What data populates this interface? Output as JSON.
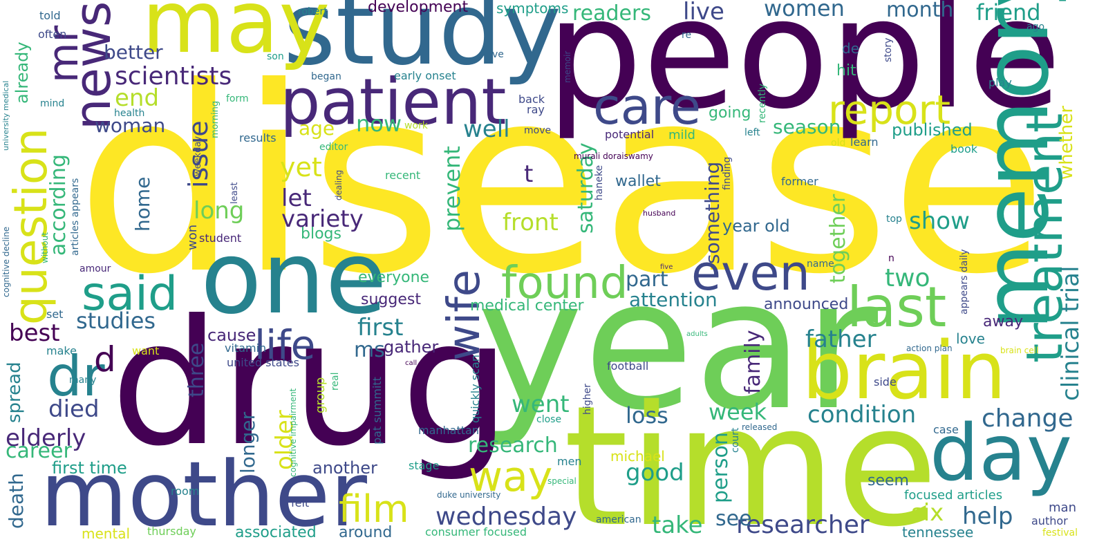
{
  "palette": {
    "dark_purple": "#440154",
    "purple": "#482878",
    "indigo": "#3e4989",
    "blue": "#31688e",
    "teal": "#26828e",
    "teal_green": "#1f9e89",
    "green": "#35b779",
    "light_green": "#6ece58",
    "lime": "#b5de2b",
    "yellow": "#fde725",
    "background": "#ffffff"
  },
  "words": [
    {
      "text": "disease",
      "color": "#fde725"
    },
    {
      "text": "people",
      "color": "#440154"
    },
    {
      "text": "year",
      "color": "#6ece58"
    },
    {
      "text": "drug",
      "color": "#440154"
    },
    {
      "text": "time",
      "color": "#b5de2b"
    },
    {
      "text": "study",
      "color": "#31688e"
    },
    {
      "text": "one",
      "color": "#26828e"
    },
    {
      "text": "mother",
      "color": "#3e4989"
    },
    {
      "text": "may",
      "color": "#d8e219"
    },
    {
      "text": "memory",
      "color": "#1f9e89"
    },
    {
      "text": "brain",
      "color": "#d8e219"
    },
    {
      "text": "patient",
      "color": "#482878"
    },
    {
      "text": "day",
      "color": "#26828e"
    },
    {
      "text": "treatment",
      "color": "#1f9e89"
    },
    {
      "text": "care",
      "color": "#3e4989"
    },
    {
      "text": "news",
      "color": "#482878"
    },
    {
      "text": "last",
      "color": "#6ece58"
    },
    {
      "text": "question",
      "color": "#d8e219"
    },
    {
      "text": "said",
      "color": "#1f9e89"
    },
    {
      "text": "even",
      "color": "#3e4989"
    },
    {
      "text": "found",
      "color": "#6ece58"
    },
    {
      "text": "wife",
      "color": "#3e4989"
    },
    {
      "text": "report",
      "color": "#d8e219"
    },
    {
      "text": "way",
      "color": "#d8e219"
    },
    {
      "text": "life",
      "color": "#3e4989"
    },
    {
      "text": "dr",
      "color": "#26828e"
    },
    {
      "text": "film",
      "color": "#d8e219"
    },
    {
      "text": "mr",
      "color": "#482878"
    },
    {
      "text": "wednesday",
      "color": "#3e4989"
    },
    {
      "text": "researcher",
      "color": "#3e4989"
    },
    {
      "text": "d",
      "color": "#440154"
    },
    {
      "text": "clinical trial",
      "color": "#26828e"
    },
    {
      "text": "whether",
      "color": "#d8e219"
    },
    {
      "text": "change",
      "color": "#31688e"
    },
    {
      "text": "condition",
      "color": "#26828e"
    },
    {
      "text": "scientists",
      "color": "#482878"
    },
    {
      "text": "friend",
      "color": "#1f9e89"
    },
    {
      "text": "women",
      "color": "#31688e"
    },
    {
      "text": "month",
      "color": "#31688e"
    },
    {
      "text": "live",
      "color": "#3e4989"
    },
    {
      "text": "readers",
      "color": "#35b779"
    },
    {
      "text": "first",
      "color": "#26828e"
    },
    {
      "text": "studies",
      "color": "#31688e"
    },
    {
      "text": "variety",
      "color": "#482878"
    },
    {
      "text": "prevent",
      "color": "#35b779"
    },
    {
      "text": "two",
      "color": "#35b779"
    },
    {
      "text": "father",
      "color": "#26828e"
    },
    {
      "text": "help",
      "color": "#31688e"
    },
    {
      "text": "six",
      "color": "#b5de2b"
    },
    {
      "text": "take",
      "color": "#35b779"
    },
    {
      "text": "see",
      "color": "#31688e"
    },
    {
      "text": "good",
      "color": "#1f9e89"
    },
    {
      "text": "loss",
      "color": "#31688e"
    },
    {
      "text": "week",
      "color": "#35b779"
    },
    {
      "text": "went",
      "color": "#35b779"
    },
    {
      "text": "research",
      "color": "#35b779"
    },
    {
      "text": "elderly",
      "color": "#482878"
    },
    {
      "text": "died",
      "color": "#3e4989"
    },
    {
      "text": "best",
      "color": "#440154"
    },
    {
      "text": "career",
      "color": "#35b779"
    },
    {
      "text": "according",
      "color": "#35b779"
    },
    {
      "text": "issue",
      "color": "#3e4989"
    },
    {
      "text": "long",
      "color": "#6ece58"
    },
    {
      "text": "front",
      "color": "#b5de2b"
    },
    {
      "text": "attention",
      "color": "#26828e"
    },
    {
      "text": "part",
      "color": "#31688e"
    },
    {
      "text": "show",
      "color": "#1f9e89"
    },
    {
      "text": "saturday",
      "color": "#35b779"
    },
    {
      "text": "something",
      "color": "#3e4989"
    },
    {
      "text": "together",
      "color": "#6ece58"
    },
    {
      "text": "season",
      "color": "#35b779"
    },
    {
      "text": "published",
      "color": "#1f9e89"
    },
    {
      "text": "better",
      "color": "#3e4989"
    },
    {
      "text": "end",
      "color": "#b5de2b"
    },
    {
      "text": "woman",
      "color": "#3e4989"
    },
    {
      "text": "age",
      "color": "#d8e219"
    },
    {
      "text": "now",
      "color": "#35b779"
    },
    {
      "text": "well",
      "color": "#26828e"
    },
    {
      "text": "yet",
      "color": "#d8e219"
    },
    {
      "text": "let",
      "color": "#482878"
    },
    {
      "text": "home",
      "color": "#31688e"
    },
    {
      "text": "wallet",
      "color": "#31688e"
    },
    {
      "text": "year old",
      "color": "#31688e"
    },
    {
      "text": "t",
      "color": "#482878"
    },
    {
      "text": "family",
      "color": "#482878"
    },
    {
      "text": "person",
      "color": "#1f9e89"
    },
    {
      "text": "older",
      "color": "#d8e219"
    },
    {
      "text": "longer",
      "color": "#31688e"
    },
    {
      "text": "three",
      "color": "#3e4989"
    },
    {
      "text": "cause",
      "color": "#482878"
    },
    {
      "text": "ms",
      "color": "#31688e"
    },
    {
      "text": "gather",
      "color": "#482878"
    },
    {
      "text": "spread",
      "color": "#26828e"
    },
    {
      "text": "death",
      "color": "#31688e"
    },
    {
      "text": "first time",
      "color": "#1f9e89"
    },
    {
      "text": "another",
      "color": "#3e4989"
    },
    {
      "text": "michael",
      "color": "#d8e219"
    },
    {
      "text": "announced",
      "color": "#3e4989"
    },
    {
      "text": "suggest",
      "color": "#482878"
    },
    {
      "text": "everyone",
      "color": "#35b779"
    },
    {
      "text": "medical center",
      "color": "#35b779"
    },
    {
      "text": "associated",
      "color": "#1f9e89"
    },
    {
      "text": "around",
      "color": "#31688e"
    },
    {
      "text": "mental",
      "color": "#d8e219"
    },
    {
      "text": "seem",
      "color": "#31688e"
    },
    {
      "text": "focused articles",
      "color": "#1f9e89"
    },
    {
      "text": "tennessee",
      "color": "#26828e"
    },
    {
      "text": "away",
      "color": "#482878"
    },
    {
      "text": "love",
      "color": "#26828e"
    },
    {
      "text": "development",
      "color": "#440154"
    },
    {
      "text": "symptoms",
      "color": "#1f9e89"
    },
    {
      "text": "already",
      "color": "#35b779"
    },
    {
      "text": "blogs",
      "color": "#35b779"
    },
    {
      "text": "going",
      "color": "#35b779"
    },
    {
      "text": "hit",
      "color": "#35b779"
    },
    {
      "text": "de",
      "color": "#31688e"
    },
    {
      "text": "mild",
      "color": "#35b779"
    },
    {
      "text": "won",
      "color": "#3e4989"
    },
    {
      "text": "student",
      "color": "#482878"
    },
    {
      "text": "group",
      "color": "#b5de2b"
    },
    {
      "text": "quickly scan",
      "color": "#26828e"
    },
    {
      "text": "pat summitt",
      "color": "#31688e"
    },
    {
      "text": "manhattan",
      "color": "#31688e"
    },
    {
      "text": "consumer focused",
      "color": "#35b779"
    },
    {
      "text": "duke university",
      "color": "#31688e"
    },
    {
      "text": "american",
      "color": "#31688e"
    },
    {
      "text": "men",
      "color": "#26828e"
    },
    {
      "text": "stage",
      "color": "#1f9e89"
    },
    {
      "text": "higher",
      "color": "#3e4989"
    },
    {
      "text": "football",
      "color": "#3e4989"
    },
    {
      "text": "united states",
      "color": "#3e4989"
    },
    {
      "text": "cognitive impairment",
      "color": "#35b779"
    },
    {
      "text": "vitamin",
      "color": "#31688e"
    },
    {
      "text": "set",
      "color": "#31688e"
    },
    {
      "text": "make",
      "color": "#26828e"
    },
    {
      "text": "want",
      "color": "#d8e219"
    },
    {
      "text": "many",
      "color": "#26828e"
    },
    {
      "text": "room",
      "color": "#26828e"
    },
    {
      "text": "felt",
      "color": "#3e4989"
    },
    {
      "text": "thursday",
      "color": "#6ece58"
    },
    {
      "text": "case",
      "color": "#31688e"
    },
    {
      "text": "side",
      "color": "#3e4989"
    },
    {
      "text": "man",
      "color": "#3e4989"
    },
    {
      "text": "author",
      "color": "#3e4989"
    },
    {
      "text": "festival",
      "color": "#d8e219"
    },
    {
      "text": "real",
      "color": "#35b779"
    },
    {
      "text": "close",
      "color": "#1f9e89"
    },
    {
      "text": "special",
      "color": "#35b779"
    },
    {
      "text": "released",
      "color": "#31688e"
    },
    {
      "text": "court",
      "color": "#26828e"
    },
    {
      "text": "action plan",
      "color": "#31688e"
    },
    {
      "text": "brain cell",
      "color": "#d8e219"
    },
    {
      "text": "adults",
      "color": "#35b779"
    },
    {
      "text": "call",
      "color": "#440154"
    },
    {
      "text": "appears daily",
      "color": "#3e4989"
    },
    {
      "text": "name",
      "color": "#31688e"
    },
    {
      "text": "n",
      "color": "#440154"
    },
    {
      "text": "five",
      "color": "#482878"
    },
    {
      "text": "husband",
      "color": "#440154"
    },
    {
      "text": "top",
      "color": "#26828e"
    },
    {
      "text": "former",
      "color": "#31688e"
    },
    {
      "text": "haneke",
      "color": "#3e4989"
    },
    {
      "text": "finding",
      "color": "#3e4989"
    },
    {
      "text": "learn",
      "color": "#31688e"
    },
    {
      "text": "old",
      "color": "#d8e219"
    },
    {
      "text": "book",
      "color": "#1f9e89"
    },
    {
      "text": "play",
      "color": "#26828e"
    },
    {
      "text": "ago",
      "color": "#26828e"
    },
    {
      "text": "story",
      "color": "#3e4989"
    },
    {
      "text": "re",
      "color": "#31688e"
    },
    {
      "text": "memoir",
      "color": "#3e4989"
    },
    {
      "text": "ve",
      "color": "#31688e"
    },
    {
      "text": "son",
      "color": "#1f9e89"
    },
    {
      "text": "robert",
      "color": "#26828e"
    },
    {
      "text": "told",
      "color": "#31688e"
    },
    {
      "text": "often",
      "color": "#3e4989"
    },
    {
      "text": "university medical",
      "color": "#26828e"
    },
    {
      "text": "mind",
      "color": "#26828e"
    },
    {
      "text": "health",
      "color": "#26828e"
    },
    {
      "text": "form",
      "color": "#35b779"
    },
    {
      "text": "morning",
      "color": "#35b779"
    },
    {
      "text": "weekday",
      "color": "#3e4989"
    },
    {
      "text": "began",
      "color": "#31688e"
    },
    {
      "text": "early onset",
      "color": "#26828e"
    },
    {
      "text": "back",
      "color": "#3e4989"
    },
    {
      "text": "ray",
      "color": "#3e4989"
    },
    {
      "text": "move",
      "color": "#3e4989"
    },
    {
      "text": "potential",
      "color": "#482878"
    },
    {
      "text": "murali doraiswamy",
      "color": "#440154"
    },
    {
      "text": "results",
      "color": "#31688e"
    },
    {
      "text": "editor",
      "color": "#35b779"
    },
    {
      "text": "work",
      "color": "#b5de2b"
    },
    {
      "text": "recent",
      "color": "#35b779"
    },
    {
      "text": "dealing",
      "color": "#3e4989"
    },
    {
      "text": "least",
      "color": "#3e4989"
    },
    {
      "text": "articles appears",
      "color": "#31688e"
    },
    {
      "text": "without",
      "color": "#35b779"
    },
    {
      "text": "cognitive decline",
      "color": "#31688e"
    },
    {
      "text": "amour",
      "color": "#482878"
    },
    {
      "text": "left",
      "color": "#26828e"
    },
    {
      "text": "recently",
      "color": "#35b779"
    }
  ]
}
